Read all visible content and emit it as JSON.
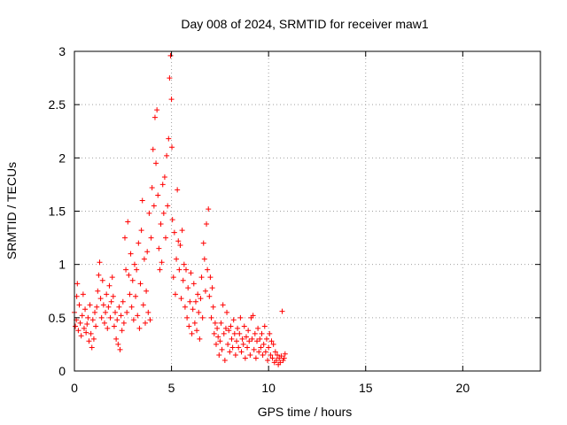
{
  "chart_data": {
    "type": "scatter",
    "title": "Day 008 of 2024, SRMTID for receiver maw1",
    "xlabel": "GPS time / hours",
    "ylabel": "SRMTID / TECUs",
    "xlim": [
      0,
      24
    ],
    "ylim": [
      0,
      3
    ],
    "xticks": [
      0,
      5,
      10,
      15,
      20
    ],
    "yticks": [
      0,
      0.5,
      1,
      1.5,
      2,
      2.5,
      3
    ],
    "xtick_labels": [
      "0",
      "5",
      "10",
      "15",
      "20"
    ],
    "ytick_labels": [
      "0",
      "0.5",
      "1",
      "1.5",
      "2",
      "2.5",
      "3"
    ],
    "grid": true,
    "marker": "+",
    "color": "#ff0000",
    "series": [
      {
        "name": "maw1",
        "points": [
          [
            0.0,
            0.55
          ],
          [
            0.05,
            0.42
          ],
          [
            0.1,
            0.48
          ],
          [
            0.12,
            0.7
          ],
          [
            0.15,
            0.82
          ],
          [
            0.2,
            0.38
          ],
          [
            0.25,
            0.62
          ],
          [
            0.3,
            0.45
          ],
          [
            0.35,
            0.33
          ],
          [
            0.4,
            0.52
          ],
          [
            0.45,
            0.72
          ],
          [
            0.5,
            0.4
          ],
          [
            0.55,
            0.58
          ],
          [
            0.6,
            0.36
          ],
          [
            0.65,
            0.44
          ],
          [
            0.7,
            0.5
          ],
          [
            0.75,
            0.28
          ],
          [
            0.8,
            0.62
          ],
          [
            0.85,
            0.35
          ],
          [
            0.9,
            0.22
          ],
          [
            0.95,
            0.48
          ],
          [
            1.0,
            0.3
          ],
          [
            1.05,
            0.55
          ],
          [
            1.1,
            0.42
          ],
          [
            1.15,
            0.6
          ],
          [
            1.2,
            0.75
          ],
          [
            1.25,
            0.9
          ],
          [
            1.3,
            1.02
          ],
          [
            1.35,
            0.68
          ],
          [
            1.4,
            0.5
          ],
          [
            1.45,
            0.85
          ],
          [
            1.5,
            0.62
          ],
          [
            1.55,
            0.45
          ],
          [
            1.6,
            0.55
          ],
          [
            1.65,
            0.72
          ],
          [
            1.7,
            0.4
          ],
          [
            1.75,
            0.6
          ],
          [
            1.8,
            0.8
          ],
          [
            1.85,
            0.5
          ],
          [
            1.9,
            0.65
          ],
          [
            1.95,
            0.88
          ],
          [
            2.0,
            0.7
          ],
          [
            2.05,
            0.42
          ],
          [
            2.1,
            0.55
          ],
          [
            2.15,
            0.3
          ],
          [
            2.2,
            0.48
          ],
          [
            2.25,
            0.25
          ],
          [
            2.3,
            0.6
          ],
          [
            2.35,
            0.2
          ],
          [
            2.4,
            0.52
          ],
          [
            2.45,
            0.38
          ],
          [
            2.5,
            0.65
          ],
          [
            2.55,
            0.45
          ],
          [
            2.6,
            1.25
          ],
          [
            2.65,
            0.95
          ],
          [
            2.7,
            0.55
          ],
          [
            2.75,
            1.4
          ],
          [
            2.8,
            0.9
          ],
          [
            2.85,
            0.72
          ],
          [
            2.9,
            1.1
          ],
          [
            2.95,
            0.6
          ],
          [
            3.0,
            0.85
          ],
          [
            3.05,
            0.48
          ],
          [
            3.1,
            1.0
          ],
          [
            3.15,
            0.7
          ],
          [
            3.2,
            0.95
          ],
          [
            3.25,
            0.52
          ],
          [
            3.3,
            1.2
          ],
          [
            3.35,
            0.4
          ],
          [
            3.4,
            0.82
          ],
          [
            3.45,
            1.32
          ],
          [
            3.5,
            1.6
          ],
          [
            3.55,
            0.62
          ],
          [
            3.6,
            1.05
          ],
          [
            3.65,
            0.45
          ],
          [
            3.7,
            0.75
          ],
          [
            3.75,
            1.12
          ],
          [
            3.8,
            0.55
          ],
          [
            3.85,
            1.48
          ],
          [
            3.9,
            0.48
          ],
          [
            3.95,
            1.25
          ],
          [
            4.0,
            1.72
          ],
          [
            4.05,
            2.08
          ],
          [
            4.1,
            1.55
          ],
          [
            4.15,
            2.38
          ],
          [
            4.2,
            1.95
          ],
          [
            4.25,
            2.45
          ],
          [
            4.3,
            1.65
          ],
          [
            4.35,
            1.15
          ],
          [
            4.4,
            0.95
          ],
          [
            4.45,
            1.38
          ],
          [
            4.5,
            1.02
          ],
          [
            4.55,
            1.75
          ],
          [
            4.6,
            1.48
          ],
          [
            4.65,
            1.82
          ],
          [
            4.7,
            1.25
          ],
          [
            4.75,
            2.02
          ],
          [
            4.8,
            1.55
          ],
          [
            4.85,
            2.18
          ],
          [
            4.9,
            2.75
          ],
          [
            4.95,
            2.96
          ],
          [
            5.0,
            2.55
          ],
          [
            5.02,
            2.1
          ],
          [
            5.05,
            1.42
          ],
          [
            5.1,
            0.88
          ],
          [
            5.15,
            1.3
          ],
          [
            5.2,
            0.72
          ],
          [
            5.25,
            1.05
          ],
          [
            5.3,
            1.7
          ],
          [
            5.35,
            1.22
          ],
          [
            5.4,
            0.95
          ],
          [
            5.45,
            1.18
          ],
          [
            5.5,
            0.68
          ],
          [
            5.55,
            1.32
          ],
          [
            5.6,
            0.85
          ],
          [
            5.65,
            1.0
          ],
          [
            5.7,
            0.6
          ],
          [
            5.75,
            0.95
          ],
          [
            5.8,
            0.5
          ],
          [
            5.85,
            0.78
          ],
          [
            5.9,
            0.42
          ],
          [
            5.95,
            0.65
          ],
          [
            6.0,
            0.92
          ],
          [
            6.05,
            0.35
          ],
          [
            6.1,
            0.58
          ],
          [
            6.15,
            0.82
          ],
          [
            6.2,
            0.45
          ],
          [
            6.25,
            0.65
          ],
          [
            6.3,
            0.38
          ],
          [
            6.35,
            0.72
          ],
          [
            6.4,
            0.55
          ],
          [
            6.45,
            0.3
          ],
          [
            6.5,
            0.68
          ],
          [
            6.55,
            0.88
          ],
          [
            6.6,
            0.5
          ],
          [
            6.65,
            1.2
          ],
          [
            6.7,
            1.05
          ],
          [
            6.75,
            0.75
          ],
          [
            6.8,
            1.38
          ],
          [
            6.85,
            0.95
          ],
          [
            6.9,
            1.52
          ],
          [
            6.95,
            0.7
          ],
          [
            7.0,
            0.88
          ],
          [
            7.05,
            0.5
          ],
          [
            7.1,
            0.78
          ],
          [
            7.15,
            0.6
          ],
          [
            7.2,
            0.35
          ],
          [
            7.25,
            0.45
          ],
          [
            7.3,
            0.25
          ],
          [
            7.35,
            0.4
          ],
          [
            7.4,
            0.32
          ],
          [
            7.45,
            0.15
          ],
          [
            7.5,
            0.28
          ],
          [
            7.55,
            0.45
          ],
          [
            7.6,
            0.2
          ],
          [
            7.65,
            0.62
          ],
          [
            7.7,
            0.35
          ],
          [
            7.75,
            0.1
          ],
          [
            7.8,
            0.4
          ],
          [
            7.85,
            0.55
          ],
          [
            7.9,
            0.25
          ],
          [
            7.95,
            0.38
          ],
          [
            8.0,
            0.18
          ],
          [
            8.05,
            0.42
          ],
          [
            8.1,
            0.3
          ],
          [
            8.15,
            0.22
          ],
          [
            8.2,
            0.48
          ],
          [
            8.25,
            0.35
          ],
          [
            8.3,
            0.15
          ],
          [
            8.35,
            0.28
          ],
          [
            8.4,
            0.4
          ],
          [
            8.45,
            0.22
          ],
          [
            8.5,
            0.35
          ],
          [
            8.55,
            0.5
          ],
          [
            8.6,
            0.18
          ],
          [
            8.65,
            0.3
          ],
          [
            8.7,
            0.25
          ],
          [
            8.75,
            0.42
          ],
          [
            8.8,
            0.12
          ],
          [
            8.85,
            0.32
          ],
          [
            8.9,
            0.22
          ],
          [
            8.95,
            0.38
          ],
          [
            9.0,
            0.28
          ],
          [
            9.05,
            0.15
          ],
          [
            9.1,
            0.5
          ],
          [
            9.15,
            0.3
          ],
          [
            9.2,
            0.52
          ],
          [
            9.25,
            0.2
          ],
          [
            9.3,
            0.35
          ],
          [
            9.35,
            0.12
          ],
          [
            9.4,
            0.28
          ],
          [
            9.45,
            0.4
          ],
          [
            9.5,
            0.18
          ],
          [
            9.55,
            0.3
          ],
          [
            9.6,
            0.22
          ],
          [
            9.65,
            0.35
          ],
          [
            9.7,
            0.15
          ],
          [
            9.75,
            0.25
          ],
          [
            9.8,
            0.42
          ],
          [
            9.85,
            0.18
          ],
          [
            9.9,
            0.3
          ],
          [
            9.95,
            0.1
          ],
          [
            10.0,
            0.22
          ],
          [
            10.05,
            0.35
          ],
          [
            10.1,
            0.15
          ],
          [
            10.15,
            0.28
          ],
          [
            10.2,
            0.12
          ],
          [
            10.25,
            0.25
          ],
          [
            10.3,
            0.08
          ],
          [
            10.35,
            0.18
          ],
          [
            10.4,
            0.1
          ],
          [
            10.45,
            0.15
          ],
          [
            10.5,
            0.06
          ],
          [
            10.55,
            0.12
          ],
          [
            10.6,
            0.08
          ],
          [
            10.65,
            0.14
          ],
          [
            10.7,
            0.56
          ],
          [
            10.75,
            0.1
          ],
          [
            10.8,
            0.12
          ],
          [
            10.85,
            0.16
          ]
        ]
      }
    ]
  }
}
